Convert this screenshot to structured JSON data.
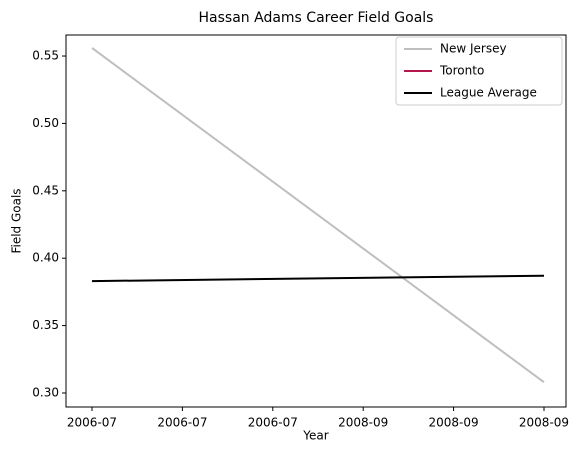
{
  "chart_data": {
    "type": "line",
    "title": "Hassan Adams Career Field Goals",
    "xlabel": "Year",
    "ylabel": "Field Goals",
    "x": [
      0,
      1
    ],
    "xlim": [
      -0.0575,
      1.0487
    ],
    "xticks": [
      {
        "value": 0,
        "label": "2006-07"
      },
      {
        "value": 0.2,
        "label": "2006-07"
      },
      {
        "value": 0.4,
        "label": "2006-07"
      },
      {
        "value": 0.6,
        "label": "2008-09"
      },
      {
        "value": 0.8,
        "label": "2008-09"
      },
      {
        "value": 1,
        "label": "2008-09"
      }
    ],
    "ylim": [
      0.2896,
      0.5656
    ],
    "yticks": [
      {
        "value": 0.3,
        "label": "0.30"
      },
      0.35,
      {
        "value": 0.4,
        "label": "0.40"
      },
      0.45,
      {
        "value": 0.5,
        "label": "0.50"
      },
      0.55
    ],
    "series": [
      {
        "name": "New Jersey",
        "color": "#bfbfbf",
        "values": [
          0.556,
          0.308
        ]
      },
      {
        "name": "Toronto",
        "color": "#b5174b",
        "values": [
          null,
          null
        ]
      },
      {
        "name": "League Average",
        "color": "#000000",
        "values": [
          0.383,
          0.387
        ]
      }
    ],
    "legend": "upper right",
    "grid": false
  }
}
